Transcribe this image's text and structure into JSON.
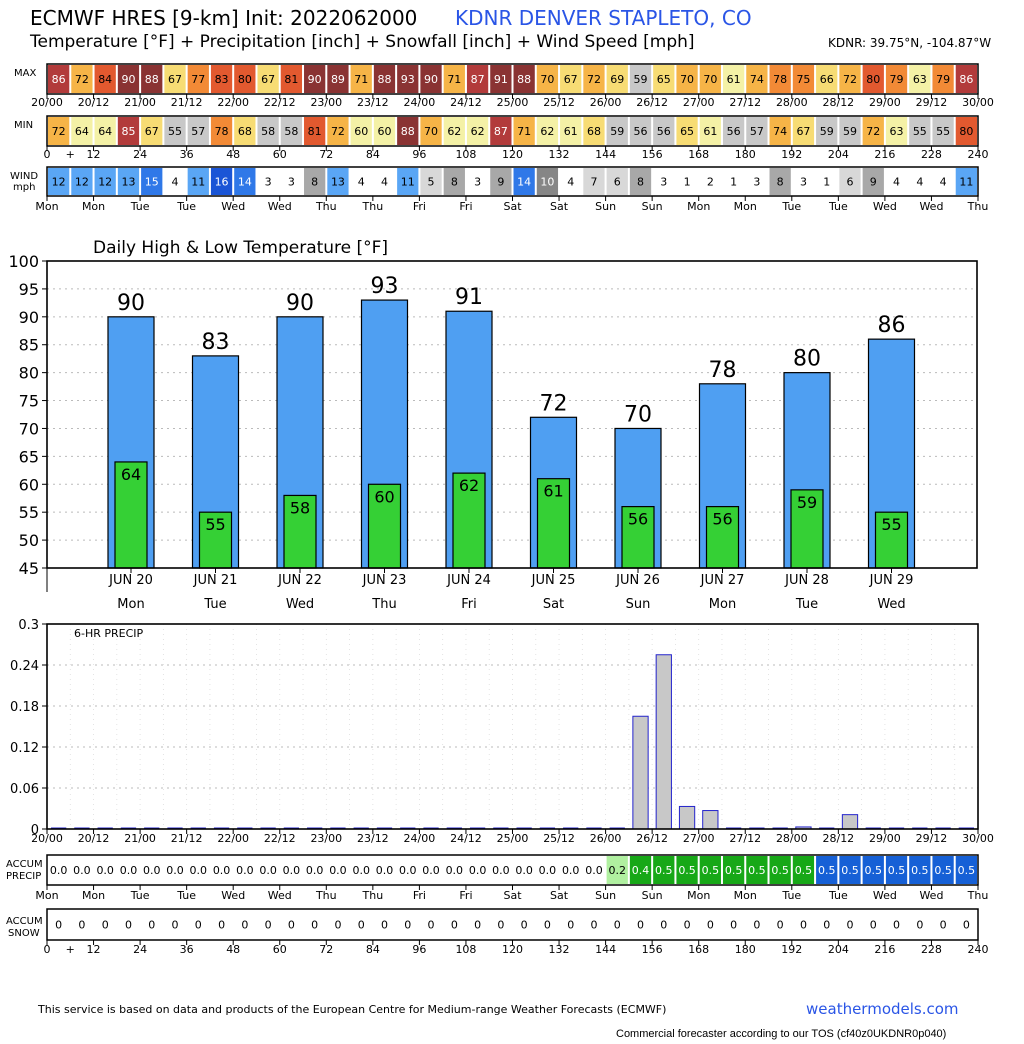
{
  "header": {
    "title": "ECMWF HRES [9-km] Init: 2022062000",
    "station": "KDNR DENVER STAPLETO, CO",
    "subtitle": "Temperature [°F] + Precipitation [inch] + Snowfall [inch] + Wind Speed [mph]",
    "coords": "KDNR: 39.75°N, -104.87°W"
  },
  "footer": {
    "note": "This service is based on data and products of the European Centre for Medium-range Weather Forecasts (ECMWF)",
    "link": "weathermodels.com",
    "tos": "Commercial forecaster according to our TOS (cf40z0UKDNR0p040)"
  },
  "rows": {
    "max_label": "MAX",
    "min_label": "MIN",
    "wind_label": "WIND",
    "wind_unit": "mph",
    "accum_precip_label": [
      "ACCUM",
      "PRECIP"
    ],
    "accum_snow_label": [
      "ACCUM",
      "SNOW"
    ]
  },
  "time_labels": [
    "20/00",
    "20/12",
    "21/00",
    "21/12",
    "22/00",
    "22/12",
    "23/00",
    "23/12",
    "24/00",
    "24/12",
    "25/00",
    "25/12",
    "26/00",
    "26/12",
    "27/00",
    "27/12",
    "28/00",
    "28/12",
    "29/00",
    "29/12",
    "30/00"
  ],
  "hour_labels": [
    "0",
    "+",
    "12",
    "24",
    "36",
    "48",
    "60",
    "72",
    "84",
    "96",
    "108",
    "120",
    "132",
    "144",
    "156",
    "168",
    "180",
    "192",
    "204",
    "216",
    "228",
    "240"
  ],
  "weekday_labels": [
    "Mon",
    "Mon",
    "Tue",
    "Tue",
    "Wed",
    "Wed",
    "Thu",
    "Thu",
    "Fri",
    "Fri",
    "Sat",
    "Sat",
    "Sun",
    "Sun",
    "Mon",
    "Mon",
    "Tue",
    "Tue",
    "Wed",
    "Wed",
    "Thu"
  ],
  "max_temps": [
    86,
    72,
    84,
    90,
    88,
    67,
    77,
    83,
    80,
    67,
    81,
    90,
    89,
    71,
    88,
    93,
    90,
    71,
    87,
    91,
    88,
    70,
    67,
    72,
    69,
    59,
    65,
    70,
    70,
    61,
    74,
    78,
    75,
    66,
    72,
    80,
    79,
    63,
    79,
    86
  ],
  "min_temps": [
    72,
    64,
    64,
    85,
    67,
    55,
    57,
    78,
    68,
    58,
    58,
    81,
    72,
    60,
    60,
    88,
    70,
    62,
    62,
    87,
    71,
    62,
    61,
    68,
    59,
    56,
    56,
    65,
    61,
    56,
    57,
    74,
    67,
    59,
    59,
    72,
    63,
    55,
    55,
    80
  ],
  "wind": [
    12,
    12,
    12,
    13,
    15,
    4,
    11,
    16,
    14,
    3,
    3,
    8,
    13,
    4,
    4,
    11,
    5,
    8,
    3,
    9,
    14,
    10,
    4,
    7,
    6,
    8,
    3,
    1,
    2,
    1,
    3,
    8,
    3,
    1,
    6,
    9,
    4,
    4,
    4,
    11
  ],
  "palette": {
    "t55": "#c8c8c8",
    "t60": "#f4f1a6",
    "t65": "#f7dc74",
    "t70": "#f6b447",
    "t75": "#f28a36",
    "t80": "#e2592f",
    "t85": "#b23b3b",
    "t90": "#8a3333",
    "t_cold": "#a8a9cc",
    "w_calm": "#ffffff",
    "w_light": "#d8d8d8",
    "w_mod": "#a8a8a8",
    "w_fresh": "#868686",
    "w_strong": "#5aa6f5",
    "w_high": "#2f78e8",
    "w_gale": "#1a55d6",
    "bar_high": "#4f9ff2",
    "bar_low": "#35d035",
    "bar_precip": "#c8c8c8",
    "acc_zero": "#ffffff",
    "acc_02": "#b0f0a0",
    "acc_04": "#17a817",
    "acc_05": "#1660d6"
  },
  "chart_data": [
    {
      "type": "bar",
      "title": "Daily High & Low Temperature [°F]",
      "categories": [
        "JUN 20",
        "JUN 21",
        "JUN 22",
        "JUN 23",
        "JUN 24",
        "JUN 25",
        "JUN 26",
        "JUN 27",
        "JUN 28",
        "JUN 29"
      ],
      "weekdays": [
        "Mon",
        "Tue",
        "Wed",
        "Thu",
        "Fri",
        "Sat",
        "Sun",
        "Mon",
        "Tue",
        "Wed"
      ],
      "series": [
        {
          "name": "High",
          "values": [
            90,
            83,
            90,
            93,
            91,
            72,
            70,
            78,
            80,
            86
          ]
        },
        {
          "name": "Low",
          "values": [
            64,
            55,
            58,
            60,
            62,
            61,
            56,
            56,
            59,
            55
          ]
        }
      ],
      "ylim": [
        45,
        100
      ],
      "yticks": [
        45,
        50,
        55,
        60,
        65,
        70,
        75,
        80,
        85,
        90,
        95,
        100
      ],
      "grid": true
    },
    {
      "type": "bar",
      "title": "6-HR PRECIP",
      "x_labels": [
        "20/00",
        "20/12",
        "21/00",
        "21/12",
        "22/00",
        "22/12",
        "23/00",
        "23/12",
        "24/00",
        "24/12",
        "25/00",
        "25/12",
        "26/00",
        "26/12",
        "27/00",
        "27/12",
        "28/00",
        "28/12",
        "29/00",
        "29/12",
        "30/00"
      ],
      "values": [
        0,
        0,
        0,
        0,
        0,
        0,
        0,
        0,
        0,
        0,
        0,
        0,
        0,
        0,
        0,
        0,
        0,
        0,
        0,
        0,
        0,
        0,
        0,
        0,
        0,
        0.165,
        0.255,
        0.033,
        0.027,
        0,
        0,
        0,
        0.003,
        0,
        0.021,
        0,
        0,
        0,
        0,
        0
      ],
      "ylim": [
        0,
        0.3
      ],
      "yticks": [
        "0",
        "0.06",
        "0.12",
        "0.18",
        "0.24",
        "0.3"
      ],
      "grid": true
    }
  ],
  "accum_precip": [
    "0.0",
    "0.0",
    "0.0",
    "0.0",
    "0.0",
    "0.0",
    "0.0",
    "0.0",
    "0.0",
    "0.0",
    "0.0",
    "0.0",
    "0.0",
    "0.0",
    "0.0",
    "0.0",
    "0.0",
    "0.0",
    "0.0",
    "0.0",
    "0.0",
    "0.0",
    "0.0",
    "0.0",
    "0.2",
    "0.4",
    "0.5",
    "0.5",
    "0.5",
    "0.5",
    "0.5",
    "0.5",
    "0.5",
    "0.5",
    "0.5",
    "0.5",
    "0.5",
    "0.5",
    "0.5",
    "0.5"
  ],
  "accum_snow": [
    "0",
    "0",
    "0",
    "0",
    "0",
    "0",
    "0",
    "0",
    "0",
    "0",
    "0",
    "0",
    "0",
    "0",
    "0",
    "0",
    "0",
    "0",
    "0",
    "0",
    "0",
    "0",
    "0",
    "0",
    "0",
    "0",
    "0",
    "0",
    "0",
    "0",
    "0",
    "0",
    "0",
    "0",
    "0",
    "0",
    "0",
    "0",
    "0",
    "0"
  ]
}
